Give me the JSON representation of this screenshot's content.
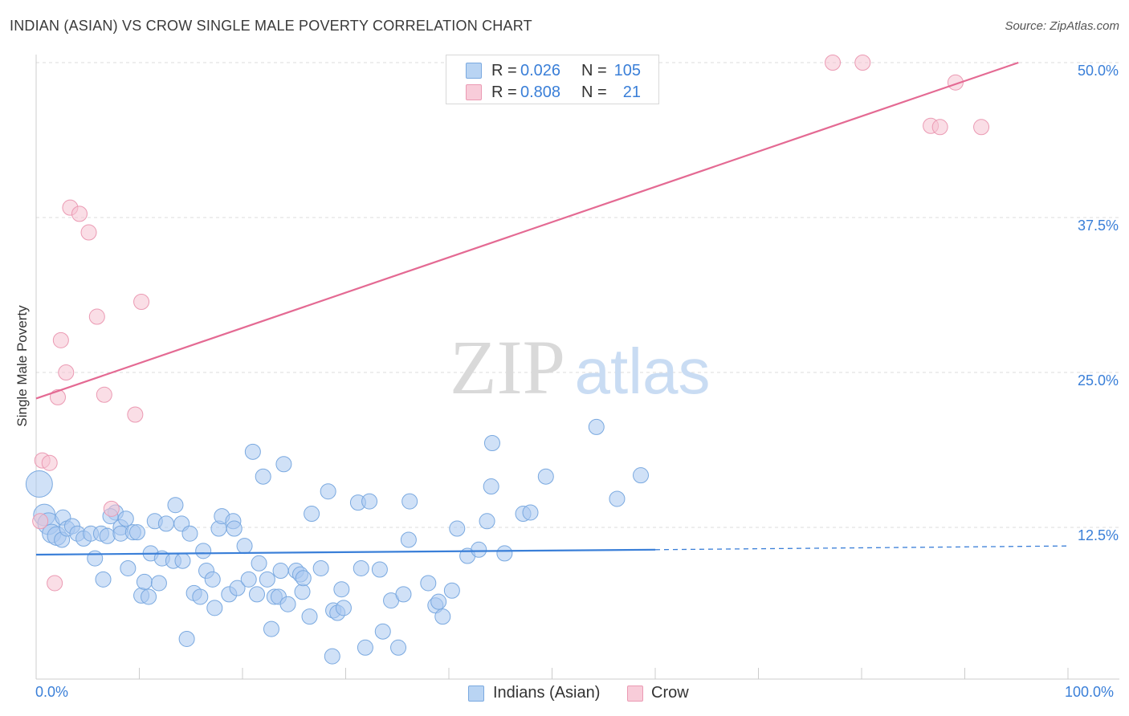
{
  "title": "INDIAN (ASIAN) VS CROW SINGLE MALE POVERTY CORRELATION CHART",
  "source": "Source: ZipAtlas.com",
  "watermark": {
    "zip": "ZIP",
    "atlas": "atlas"
  },
  "legend": {
    "rows": [
      {
        "r_label": "R =",
        "r_value": "0.026",
        "n_label": "N =",
        "n_value": "105",
        "color": "#9ec4ee"
      },
      {
        "r_label": "R =",
        "r_value": "0.808",
        "n_label": "N =",
        "n_value": "21",
        "color": "#f4b8ca"
      }
    ]
  },
  "bottom_legend": [
    {
      "label": "Indians (Asian)",
      "color": "#9ec4ee"
    },
    {
      "label": "Crow",
      "color": "#f4b8ca"
    }
  ],
  "colors": {
    "blue_fill": "#a9c9f0",
    "blue_stroke": "#7aa9e0",
    "blue_line": "#3a7fd8",
    "pink_fill": "#f6c3d2",
    "pink_stroke": "#eb9ab3",
    "pink_line": "#e46a93",
    "grid": "#dddddd",
    "tick_label": "#3a7fd8"
  },
  "chart_data": {
    "type": "scatter",
    "title": "INDIAN (ASIAN) VS CROW SINGLE MALE POVERTY CORRELATION CHART",
    "xlabel": "",
    "ylabel": "Single Male Poverty",
    "xlim": [
      0,
      100
    ],
    "ylim": [
      0,
      50
    ],
    "x_tick_labels": [
      "0.0%",
      "100.0%"
    ],
    "y_ticks": [
      12.5,
      25.0,
      37.5,
      50.0
    ],
    "y_tick_labels": [
      "12.5%",
      "25.0%",
      "37.5%",
      "50.0%"
    ],
    "grid": "horizontal dashed",
    "legend_position": "top-center",
    "series": [
      {
        "name": "Indians (Asian)",
        "r": 0.026,
        "n": 105,
        "trend": {
          "x0": 0,
          "y0": 10.3,
          "x1": 60,
          "y1": 10.7,
          "dashed_to_x": 100,
          "dashed_y1": 11.0
        },
        "points": [
          [
            0.3,
            16.0,
            3
          ],
          [
            0.8,
            13.5,
            2
          ],
          [
            1.2,
            12.8,
            2
          ],
          [
            1.5,
            12.0,
            1.5
          ],
          [
            2.0,
            11.8,
            1.5
          ],
          [
            2.5,
            11.5,
            1
          ],
          [
            2.6,
            13.3,
            1
          ],
          [
            3.0,
            12.4,
            1
          ],
          [
            3.5,
            12.6,
            1
          ],
          [
            4.0,
            12.0,
            1
          ],
          [
            4.6,
            11.6,
            1
          ],
          [
            5.3,
            12.0,
            1
          ],
          [
            5.7,
            10.0,
            1
          ],
          [
            6.5,
            8.3,
            1
          ],
          [
            6.3,
            12.0,
            1
          ],
          [
            6.9,
            11.8,
            1
          ],
          [
            7.7,
            13.7,
            1
          ],
          [
            7.2,
            13.4,
            1
          ],
          [
            8.2,
            12.5,
            1
          ],
          [
            8.7,
            13.2,
            1
          ],
          [
            8.2,
            12.0,
            1
          ],
          [
            8.9,
            9.2,
            1
          ],
          [
            9.4,
            12.1,
            1
          ],
          [
            9.8,
            12.1,
            1
          ],
          [
            10.2,
            7.0,
            1
          ],
          [
            10.5,
            8.1,
            1
          ],
          [
            10.9,
            6.9,
            1
          ],
          [
            11.1,
            10.4,
            1
          ],
          [
            11.5,
            13.0,
            1
          ],
          [
            11.9,
            8.0,
            1
          ],
          [
            12.2,
            10.0,
            1
          ],
          [
            12.6,
            12.8,
            1
          ],
          [
            13.3,
            9.8,
            1
          ],
          [
            13.5,
            14.3,
            1
          ],
          [
            14.1,
            12.8,
            1
          ],
          [
            14.2,
            9.8,
            1
          ],
          [
            14.9,
            12.0,
            1
          ],
          [
            15.3,
            7.2,
            1
          ],
          [
            15.9,
            6.9,
            1
          ],
          [
            16.2,
            10.6,
            1
          ],
          [
            16.5,
            9.0,
            1
          ],
          [
            14.6,
            3.5,
            1
          ],
          [
            17.1,
            8.3,
            1
          ],
          [
            17.3,
            6.0,
            1
          ],
          [
            17.7,
            12.4,
            1
          ],
          [
            18.0,
            13.4,
            1
          ],
          [
            18.7,
            7.1,
            1
          ],
          [
            19.1,
            13.0,
            1
          ],
          [
            19.2,
            12.4,
            1
          ],
          [
            19.5,
            7.6,
            1
          ],
          [
            20.2,
            11.0,
            1
          ],
          [
            20.6,
            8.3,
            1
          ],
          [
            21.0,
            18.6,
            1
          ],
          [
            21.4,
            7.1,
            1
          ],
          [
            21.6,
            9.6,
            1
          ],
          [
            22.0,
            16.6,
            1
          ],
          [
            22.4,
            8.3,
            1
          ],
          [
            22.8,
            4.3,
            1
          ],
          [
            23.1,
            6.9,
            1
          ],
          [
            23.5,
            6.9,
            1
          ],
          [
            23.7,
            9.0,
            1
          ],
          [
            24.0,
            17.6,
            1
          ],
          [
            24.4,
            6.3,
            1
          ],
          [
            25.2,
            9.0,
            1
          ],
          [
            25.6,
            8.7,
            1
          ],
          [
            25.8,
            7.3,
            1
          ],
          [
            25.9,
            8.4,
            1
          ],
          [
            26.5,
            5.3,
            1
          ],
          [
            26.7,
            13.6,
            1
          ],
          [
            27.6,
            9.2,
            1
          ],
          [
            28.3,
            15.4,
            1
          ],
          [
            28.8,
            5.8,
            1
          ],
          [
            29.2,
            5.6,
            1
          ],
          [
            29.6,
            7.5,
            1
          ],
          [
            29.8,
            6.0,
            1
          ],
          [
            28.7,
            2.1,
            1
          ],
          [
            31.2,
            14.5,
            1
          ],
          [
            31.5,
            9.2,
            1
          ],
          [
            31.9,
            2.8,
            1
          ],
          [
            32.3,
            14.6,
            1
          ],
          [
            33.3,
            9.1,
            1
          ],
          [
            33.6,
            4.1,
            1
          ],
          [
            34.4,
            6.6,
            1
          ],
          [
            35.1,
            2.8,
            1
          ],
          [
            35.6,
            7.1,
            1
          ],
          [
            36.1,
            11.5,
            1
          ],
          [
            36.2,
            14.6,
            1
          ],
          [
            38.0,
            8.0,
            1
          ],
          [
            38.7,
            6.2,
            1
          ],
          [
            39.4,
            5.3,
            1
          ],
          [
            39.0,
            6.5,
            1
          ],
          [
            40.3,
            7.4,
            1
          ],
          [
            40.8,
            12.4,
            1
          ],
          [
            41.8,
            10.2,
            1
          ],
          [
            42.9,
            10.7,
            1
          ],
          [
            43.7,
            13.0,
            1
          ],
          [
            44.1,
            15.8,
            1
          ],
          [
            44.2,
            19.3,
            1
          ],
          [
            45.4,
            10.4,
            1
          ],
          [
            47.2,
            13.6,
            1
          ],
          [
            47.9,
            13.7,
            1
          ],
          [
            49.4,
            16.6,
            1
          ],
          [
            54.3,
            20.6,
            1
          ],
          [
            56.3,
            14.8,
            1
          ],
          [
            58.6,
            16.7,
            1
          ]
        ]
      },
      {
        "name": "Crow",
        "r": 0.808,
        "n": 21,
        "trend": {
          "x0": 0,
          "y0": 22.9,
          "x1": 95.2,
          "y1": 50.0
        },
        "points": [
          [
            0.4,
            13.0,
            1
          ],
          [
            0.6,
            17.9,
            1
          ],
          [
            1.3,
            17.7,
            1
          ],
          [
            1.8,
            8.0,
            1
          ],
          [
            2.1,
            23.0,
            1
          ],
          [
            2.4,
            27.6,
            1
          ],
          [
            2.9,
            25.0,
            1
          ],
          [
            3.3,
            38.3,
            1
          ],
          [
            4.2,
            37.8,
            1
          ],
          [
            5.1,
            36.3,
            1
          ],
          [
            5.9,
            29.5,
            1
          ],
          [
            6.6,
            23.2,
            1
          ],
          [
            7.3,
            14.0,
            1
          ],
          [
            9.6,
            21.6,
            1
          ],
          [
            10.2,
            30.7,
            1
          ],
          [
            77.2,
            50.0,
            1
          ],
          [
            80.1,
            50.0,
            1
          ],
          [
            86.7,
            44.9,
            1
          ],
          [
            87.6,
            44.8,
            1
          ],
          [
            89.1,
            48.4,
            1
          ],
          [
            91.6,
            44.8,
            1
          ]
        ]
      }
    ]
  }
}
